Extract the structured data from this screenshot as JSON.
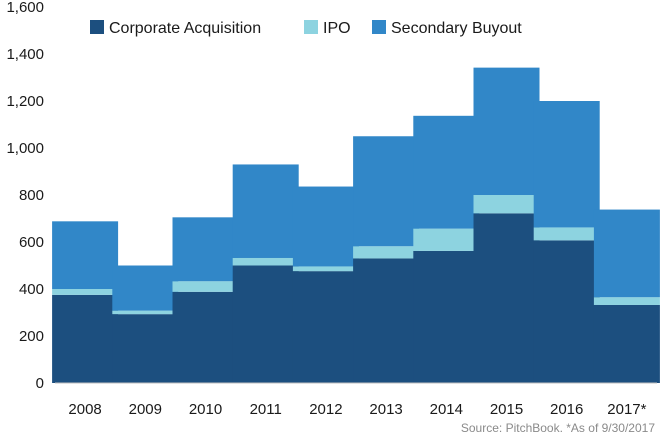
{
  "chart_data": {
    "type": "bar",
    "stacked": true,
    "categories": [
      "2008",
      "2009",
      "2010",
      "2011",
      "2012",
      "2013",
      "2014",
      "2015",
      "2016",
      "2017*"
    ],
    "series": [
      {
        "name": "Corporate Acquisition",
        "color": "#1c4f7f",
        "values": [
          375,
          293,
          388,
          500,
          476,
          530,
          562,
          722,
          607,
          332
        ]
      },
      {
        "name": "IPO",
        "color": "#8dd3e0",
        "values": [
          25,
          15,
          45,
          32,
          20,
          52,
          95,
          78,
          55,
          33
        ]
      },
      {
        "name": "Secondary Buyout",
        "color": "#3187c8",
        "values": [
          288,
          192,
          272,
          398,
          340,
          468,
          480,
          542,
          538,
          373
        ]
      }
    ],
    "yticks": [
      "0",
      "200",
      "400",
      "600",
      "800",
      "1,000",
      "1,200",
      "1,400",
      "1,600"
    ],
    "ylim": [
      0,
      1600
    ],
    "grid": false,
    "legend_position": "top"
  },
  "source": "Source: PitchBook. *As of 9/30/2017"
}
